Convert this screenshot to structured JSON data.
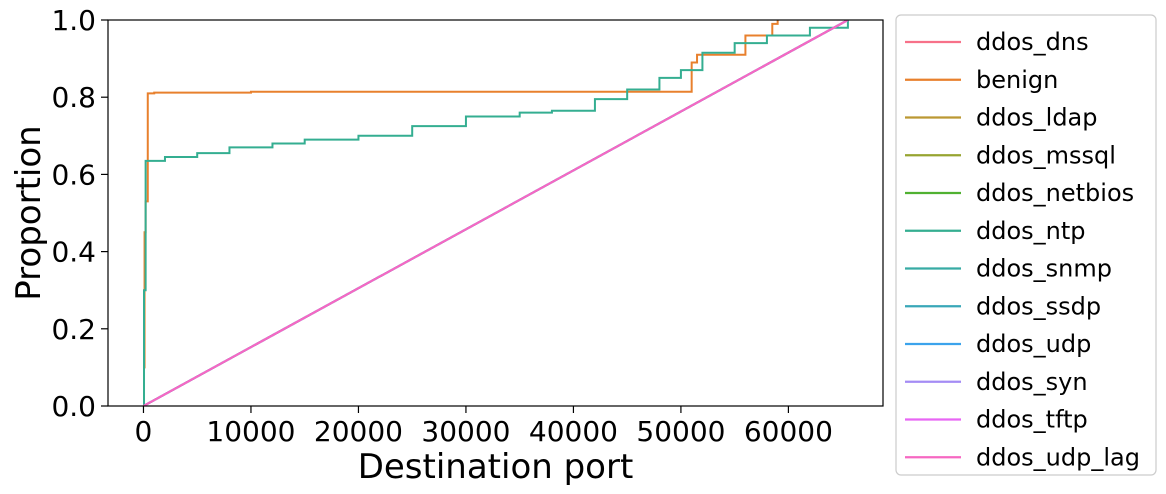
{
  "chart_data": {
    "type": "line",
    "title": "",
    "xlabel": "Destination port",
    "ylabel": "Proportion",
    "xlim": [
      -3300,
      68800
    ],
    "ylim": [
      0.0,
      1.0
    ],
    "xticks": [
      0,
      10000,
      20000,
      30000,
      40000,
      50000,
      60000
    ],
    "yticks": [
      0.0,
      0.2,
      0.4,
      0.6,
      0.8,
      1.0
    ],
    "xtick_labels": [
      "0",
      "10000",
      "20000",
      "30000",
      "40000",
      "50000",
      "60000"
    ],
    "ytick_labels": [
      "0.0",
      "0.2",
      "0.4",
      "0.6",
      "0.8",
      "1.0"
    ],
    "legend_position": "outside-right",
    "grid": false,
    "step": true,
    "series": [
      {
        "name": "ddos_dns",
        "color": "#f77189",
        "x": [
          0,
          65535
        ],
        "y": [
          0.0,
          1.0
        ]
      },
      {
        "name": "benign",
        "color": "#e8802d",
        "x": [
          0,
          50,
          100,
          200,
          400,
          1000,
          10000,
          30000,
          45000,
          50500,
          51000,
          51500,
          55500,
          56000,
          57000,
          58500,
          59000
        ],
        "y": [
          0.0,
          0.1,
          0.45,
          0.53,
          0.81,
          0.812,
          0.814,
          0.814,
          0.814,
          0.814,
          0.89,
          0.91,
          0.91,
          0.96,
          0.96,
          0.99,
          1.0
        ]
      },
      {
        "name": "ddos_ldap",
        "color": "#bb9832",
        "x": [
          0,
          65535
        ],
        "y": [
          0.0,
          1.0
        ]
      },
      {
        "name": "ddos_mssql",
        "color": "#97a431",
        "x": [
          0,
          65535
        ],
        "y": [
          0.0,
          1.0
        ]
      },
      {
        "name": "ddos_netbios",
        "color": "#50b131",
        "x": [
          0,
          65535
        ],
        "y": [
          0.0,
          1.0
        ]
      },
      {
        "name": "ddos_ntp",
        "color": "#34ae91",
        "x": [
          0,
          50,
          200,
          2000,
          5000,
          8000,
          12000,
          15000,
          20000,
          25000,
          30000,
          35000,
          38000,
          42000,
          45000,
          48000,
          50000,
          52000,
          55000,
          58000,
          62000,
          65535
        ],
        "y": [
          0.0,
          0.3,
          0.635,
          0.645,
          0.655,
          0.67,
          0.68,
          0.69,
          0.7,
          0.725,
          0.75,
          0.76,
          0.765,
          0.795,
          0.82,
          0.85,
          0.87,
          0.915,
          0.94,
          0.96,
          0.98,
          1.0
        ]
      },
      {
        "name": "ddos_snmp",
        "color": "#37aba4",
        "x": [
          0,
          65535
        ],
        "y": [
          0.0,
          1.0
        ]
      },
      {
        "name": "ddos_ssdp",
        "color": "#39a7b8",
        "x": [
          0,
          65535
        ],
        "y": [
          0.0,
          1.0
        ]
      },
      {
        "name": "ddos_udp",
        "color": "#3ba3ec",
        "x": [
          0,
          65535
        ],
        "y": [
          0.0,
          1.0
        ]
      },
      {
        "name": "ddos_syn",
        "color": "#a48cf4",
        "x": [
          0,
          65535
        ],
        "y": [
          0.0,
          1.0
        ]
      },
      {
        "name": "ddos_tftp",
        "color": "#e866f4",
        "x": [
          0,
          65535
        ],
        "y": [
          0.0,
          1.0
        ]
      },
      {
        "name": "ddos_udp_lag",
        "color": "#f668c2",
        "x": [
          0,
          65535
        ],
        "y": [
          0.0,
          1.0
        ]
      }
    ]
  }
}
